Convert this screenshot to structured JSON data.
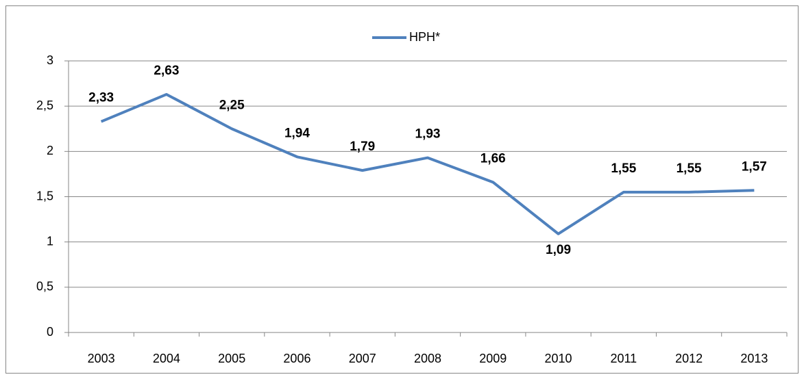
{
  "chart_data": {
    "type": "line",
    "categories": [
      "2003",
      "2004",
      "2005",
      "2006",
      "2007",
      "2008",
      "2009",
      "2010",
      "2011",
      "2012",
      "2013"
    ],
    "series": [
      {
        "name": "HPH*",
        "color": "#4f81bd",
        "values": [
          2.33,
          2.63,
          2.25,
          1.94,
          1.79,
          1.93,
          1.66,
          1.09,
          1.55,
          1.55,
          1.57
        ],
        "value_labels": [
          "2,33",
          "2,63",
          "2,25",
          "1,94",
          "1,79",
          "1,93",
          "1,66",
          "1,09",
          "1,55",
          "1,55",
          "1,57"
        ]
      }
    ],
    "ylim": [
      0,
      3
    ],
    "yticks": [
      0,
      {
        "value": 0.5,
        "label": "0,5"
      },
      1,
      {
        "value": 1.5,
        "label": "1,5"
      },
      2,
      {
        "value": 2.5,
        "label": "2,5"
      },
      3
    ],
    "grid": true,
    "legend": "top"
  }
}
